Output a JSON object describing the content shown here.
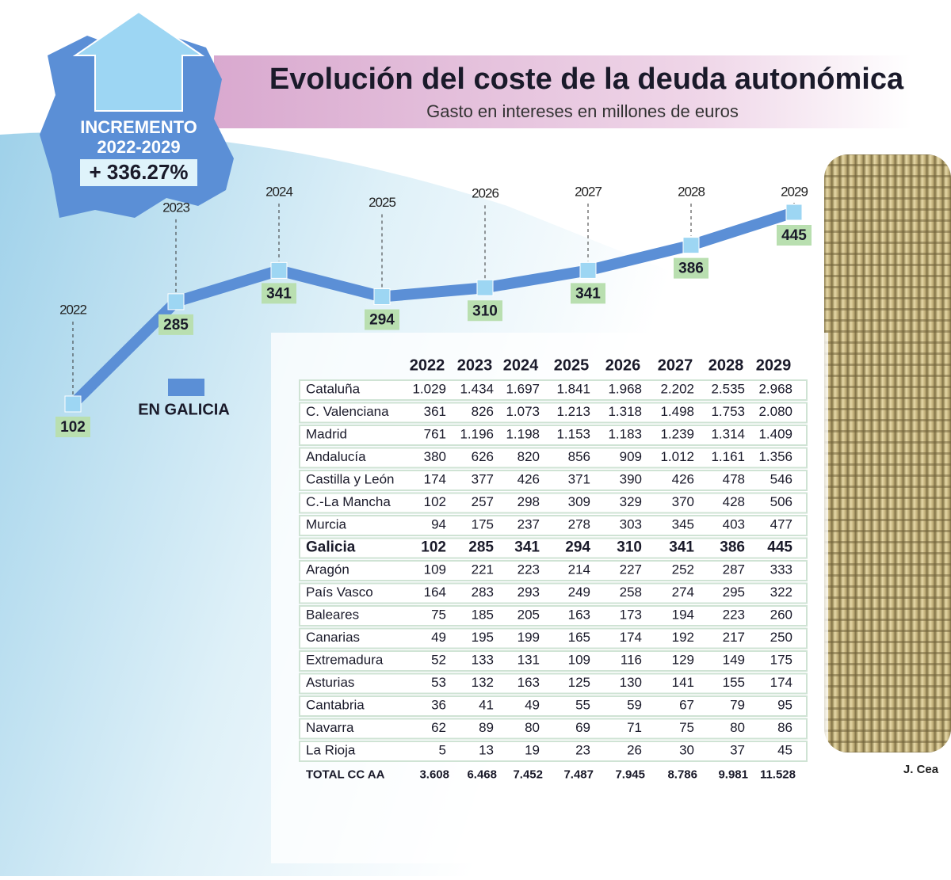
{
  "chart_data": {
    "type": "line",
    "title": "Evolución del coste de la deuda autonómica",
    "subtitle": "Gasto en intereses en millones de euros",
    "categories": [
      "2022",
      "2023",
      "2024",
      "2025",
      "2026",
      "2027",
      "2028",
      "2029"
    ],
    "series": [
      {
        "name": "EN GALICIA",
        "color": "#5b8fd6",
        "values": [
          102,
          285,
          341,
          294,
          310,
          341,
          386,
          445
        ]
      }
    ]
  },
  "badge": {
    "title": "INCREMENTO",
    "period": "2022-2029",
    "value": "+ 336.27%"
  },
  "table": {
    "columns": [
      "2022",
      "2023",
      "2024",
      "2025",
      "2026",
      "2027",
      "2028",
      "2029"
    ],
    "rows": [
      {
        "label": "Cataluña",
        "values": [
          "1.029",
          "1.434",
          "1.697",
          "1.841",
          "1.968",
          "2.202",
          "2.535",
          "2.968"
        ]
      },
      {
        "label": "C. Valenciana",
        "values": [
          "361",
          "826",
          "1.073",
          "1.213",
          "1.318",
          "1.498",
          "1.753",
          "2.080"
        ]
      },
      {
        "label": "Madrid",
        "values": [
          "761",
          "1.196",
          "1.198",
          "1.153",
          "1.183",
          "1.239",
          "1.314",
          "1.409"
        ]
      },
      {
        "label": "Andalucía",
        "values": [
          "380",
          "626",
          "820",
          "856",
          "909",
          "1.012",
          "1.161",
          "1.356"
        ]
      },
      {
        "label": "Castilla y León",
        "values": [
          "174",
          "377",
          "426",
          "371",
          "390",
          "426",
          "478",
          "546"
        ]
      },
      {
        "label": "C.-La Mancha",
        "values": [
          "102",
          "257",
          "298",
          "309",
          "329",
          "370",
          "428",
          "506"
        ]
      },
      {
        "label": "Murcia",
        "values": [
          "94",
          "175",
          "237",
          "278",
          "303",
          "345",
          "403",
          "477"
        ]
      },
      {
        "label": "Galicia",
        "values": [
          "102",
          "285",
          "341",
          "294",
          "310",
          "341",
          "386",
          "445"
        ]
      },
      {
        "label": "Aragón",
        "values": [
          "109",
          "221",
          "223",
          "214",
          "227",
          "252",
          "287",
          "333"
        ]
      },
      {
        "label": "País Vasco",
        "values": [
          "164",
          "283",
          "293",
          "249",
          "258",
          "274",
          "295",
          "322"
        ]
      },
      {
        "label": "Baleares",
        "values": [
          "75",
          "185",
          "205",
          "163",
          "173",
          "194",
          "223",
          "260"
        ]
      },
      {
        "label": "Canarias",
        "values": [
          "49",
          "195",
          "199",
          "165",
          "174",
          "192",
          "217",
          "250"
        ]
      },
      {
        "label": "Extremadura",
        "values": [
          "52",
          "133",
          "131",
          "109",
          "116",
          "129",
          "149",
          "175"
        ]
      },
      {
        "label": "Asturias",
        "values": [
          "53",
          "132",
          "163",
          "125",
          "130",
          "141",
          "155",
          "174"
        ]
      },
      {
        "label": "Cantabria",
        "values": [
          "36",
          "41",
          "49",
          "55",
          "59",
          "67",
          "79",
          "95"
        ]
      },
      {
        "label": "Navarra",
        "values": [
          "62",
          "89",
          "80",
          "69",
          "71",
          "75",
          "80",
          "86"
        ]
      },
      {
        "label": "La Rioja",
        "values": [
          "5",
          "13",
          "19",
          "23",
          "26",
          "30",
          "37",
          "45"
        ]
      }
    ],
    "total": {
      "label": "TOTAL CC AA",
      "values": [
        "3.608",
        "6.468",
        "7.452",
        "7.487",
        "7.945",
        "8.786",
        "9.981",
        "11.528"
      ]
    }
  },
  "credit": "J. Cea"
}
